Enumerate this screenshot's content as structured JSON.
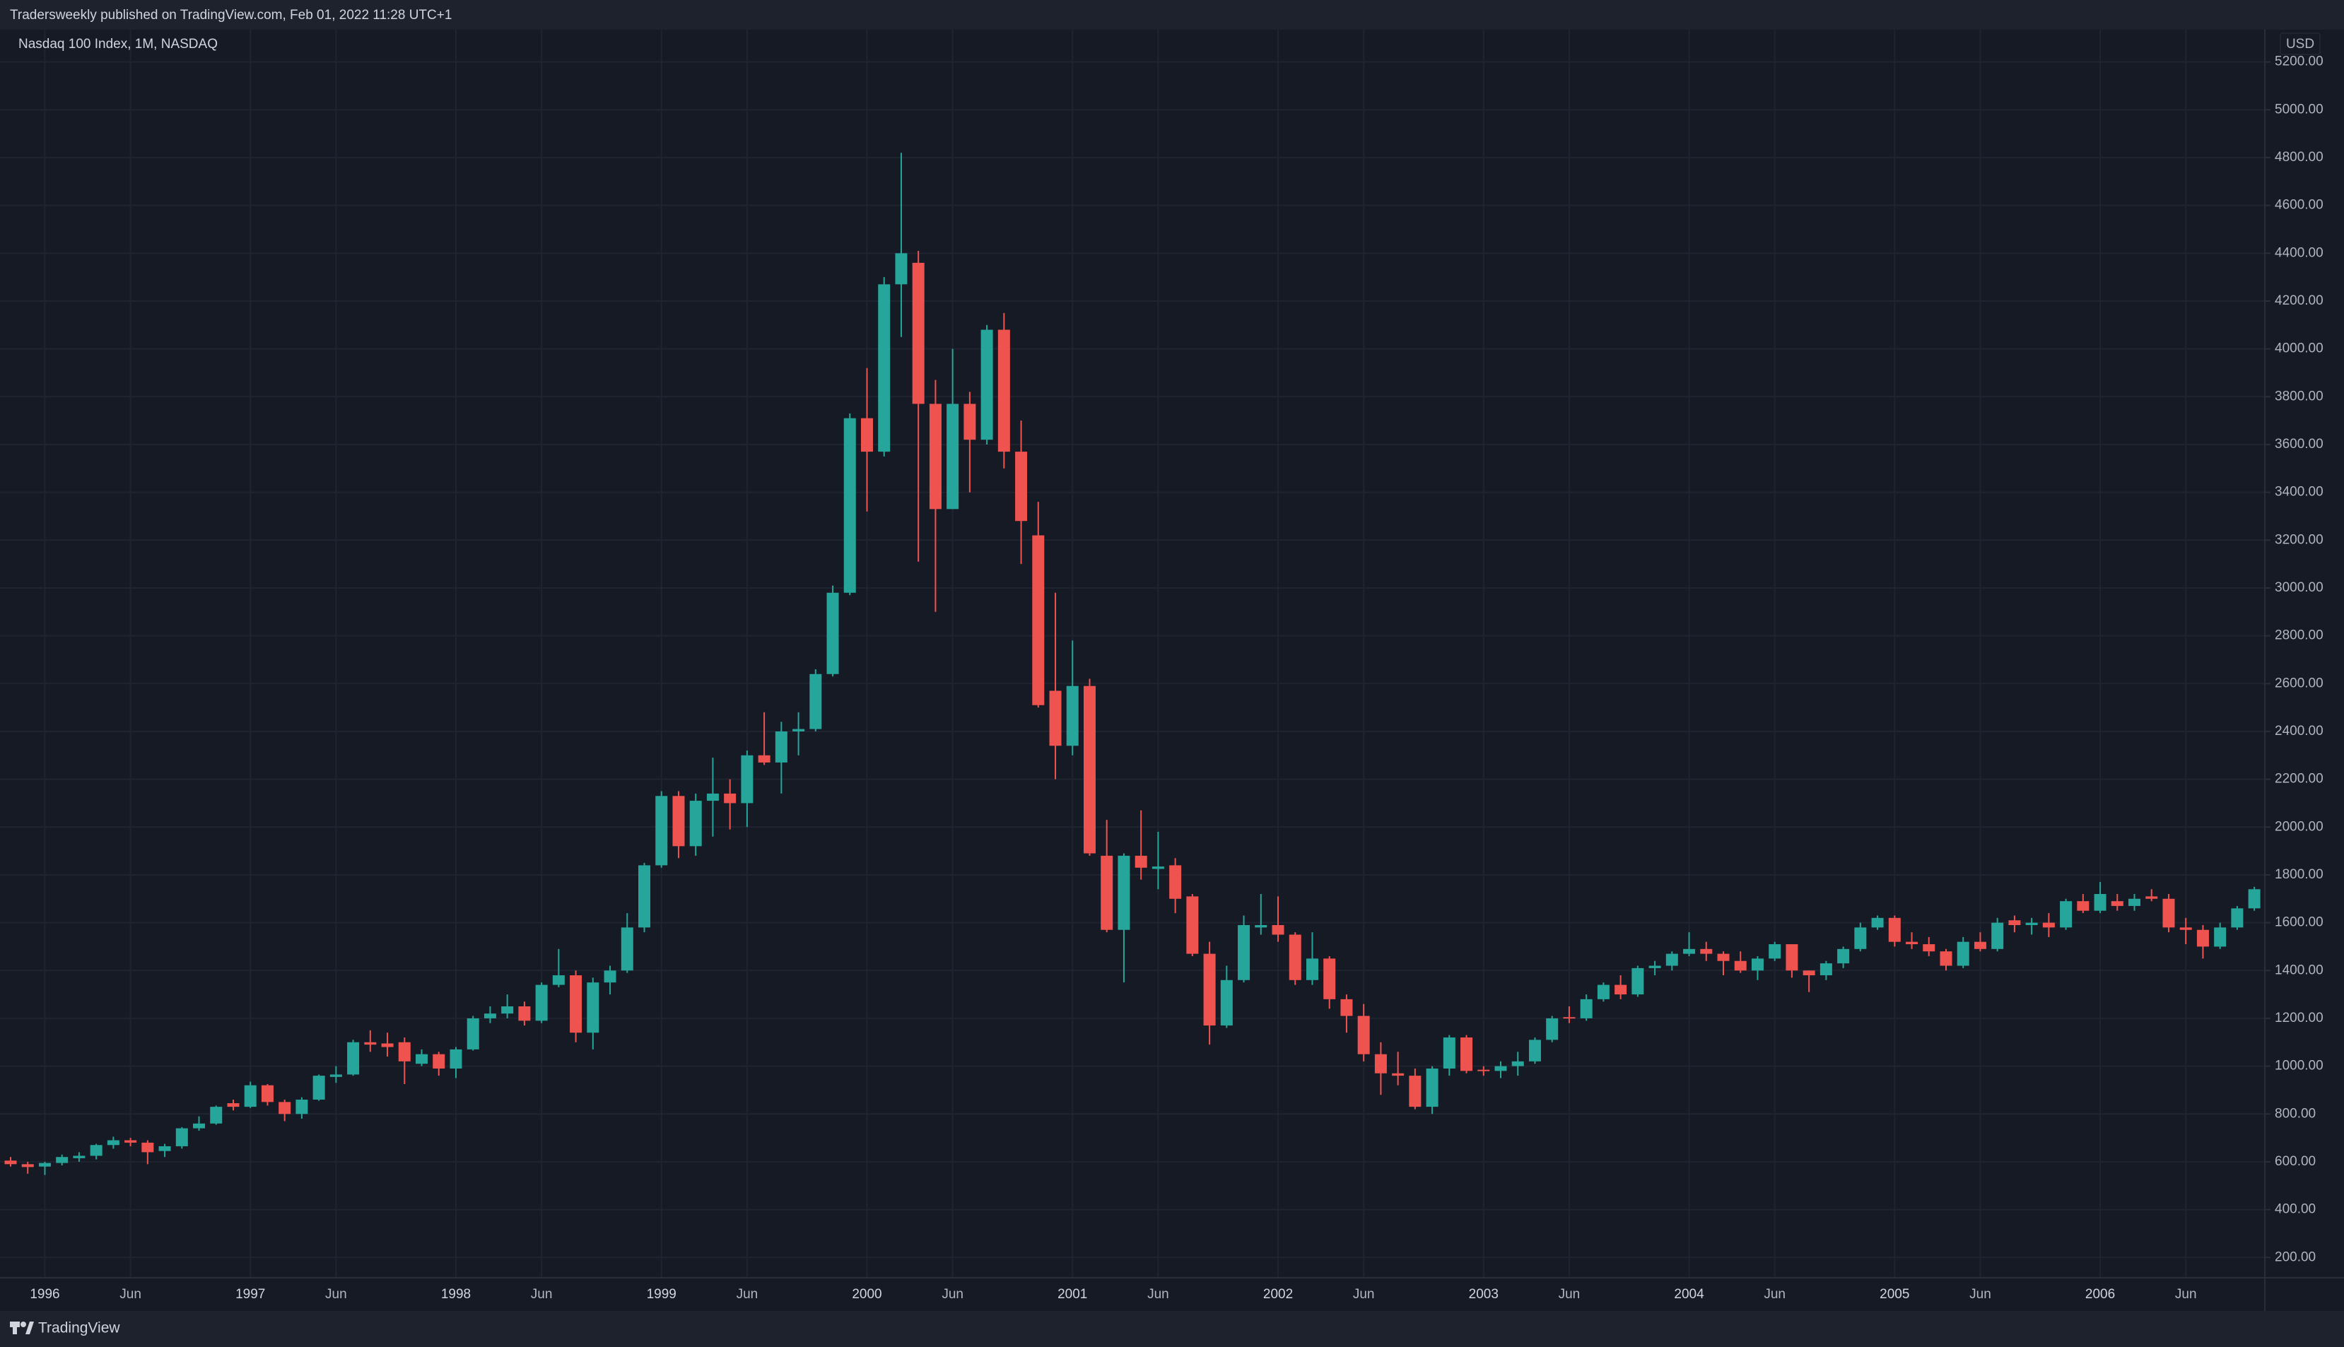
{
  "header": {
    "text": "Tradersweekly published on TradingView.com, Feb 01, 2022 11:28 UTC+1"
  },
  "footer": {
    "logo": "TradingView"
  },
  "chart_data": {
    "type": "candlestick",
    "title": "Nasdaq 100 Index, 1M, NASDAQ",
    "y_unit": "USD",
    "up_color": "#26a69a",
    "down_color": "#ef5350",
    "grid": true,
    "ylim": [
      115,
      5335
    ],
    "yticks": [
      {
        "value": 200,
        "label": "200.00"
      },
      {
        "value": 400,
        "label": "400.00"
      },
      {
        "value": 600,
        "label": "600.00"
      },
      {
        "value": 800,
        "label": "800.00"
      },
      {
        "value": 1000,
        "label": "1000.00"
      },
      {
        "value": 1200,
        "label": "1200.00"
      },
      {
        "value": 1400,
        "label": "1400.00"
      },
      {
        "value": 1600,
        "label": "1600.00"
      },
      {
        "value": 1800,
        "label": "1800.00"
      },
      {
        "value": 2000,
        "label": "2000.00"
      },
      {
        "value": 2200,
        "label": "2200.00"
      },
      {
        "value": 2400,
        "label": "2400.00"
      },
      {
        "value": 2600,
        "label": "2600.00"
      },
      {
        "value": 2800,
        "label": "2800.00"
      },
      {
        "value": 3000,
        "label": "3000.00"
      },
      {
        "value": 3200,
        "label": "3200.00"
      },
      {
        "value": 3400,
        "label": "3400.00"
      },
      {
        "value": 3600,
        "label": "3600.00"
      },
      {
        "value": 3800,
        "label": "3800.00"
      },
      {
        "value": 4000,
        "label": "4000.00"
      },
      {
        "value": 4200,
        "label": "4200.00"
      },
      {
        "value": 4400,
        "label": "4400.00"
      },
      {
        "value": 4600,
        "label": "4600.00"
      },
      {
        "value": 4800,
        "label": "4800.00"
      },
      {
        "value": 5000,
        "label": "5000.00"
      },
      {
        "value": 5200,
        "label": "5200.00"
      }
    ],
    "xticks": [
      {
        "value": "1996-01",
        "label": "1996"
      },
      {
        "value": "1996-06",
        "label": "Jun"
      },
      {
        "value": "1997-01",
        "label": "1997"
      },
      {
        "value": "1997-06",
        "label": "Jun"
      },
      {
        "value": "1998-01",
        "label": "1998"
      },
      {
        "value": "1998-06",
        "label": "Jun"
      },
      {
        "value": "1999-01",
        "label": "1999"
      },
      {
        "value": "1999-06",
        "label": "Jun"
      },
      {
        "value": "2000-01",
        "label": "2000"
      },
      {
        "value": "2000-06",
        "label": "Jun"
      },
      {
        "value": "2001-01",
        "label": "2001"
      },
      {
        "value": "2001-06",
        "label": "Jun"
      },
      {
        "value": "2002-01",
        "label": "2002"
      },
      {
        "value": "2002-06",
        "label": "Jun"
      },
      {
        "value": "2003-01",
        "label": "2003"
      },
      {
        "value": "2003-06",
        "label": "Jun"
      },
      {
        "value": "2004-01",
        "label": "2004"
      },
      {
        "value": "2004-06",
        "label": "Jun"
      },
      {
        "value": "2005-01",
        "label": "2005"
      },
      {
        "value": "2005-06",
        "label": "Jun"
      },
      {
        "value": "2006-01",
        "label": "2006"
      },
      {
        "value": "2006-06",
        "label": "Jun"
      }
    ],
    "x": [
      "1995-11",
      "1995-12",
      "1996-01",
      "1996-02",
      "1996-03",
      "1996-04",
      "1996-05",
      "1996-06",
      "1996-07",
      "1996-08",
      "1996-09",
      "1996-10",
      "1996-11",
      "1996-12",
      "1997-01",
      "1997-02",
      "1997-03",
      "1997-04",
      "1997-05",
      "1997-06",
      "1997-07",
      "1997-08",
      "1997-09",
      "1997-10",
      "1997-11",
      "1997-12",
      "1998-01",
      "1998-02",
      "1998-03",
      "1998-04",
      "1998-05",
      "1998-06",
      "1998-07",
      "1998-08",
      "1998-09",
      "1998-10",
      "1998-11",
      "1998-12",
      "1999-01",
      "1999-02",
      "1999-03",
      "1999-04",
      "1999-05",
      "1999-06",
      "1999-07",
      "1999-08",
      "1999-09",
      "1999-10",
      "1999-11",
      "1999-12",
      "2000-01",
      "2000-02",
      "2000-03",
      "2000-04",
      "2000-05",
      "2000-06",
      "2000-07",
      "2000-08",
      "2000-09",
      "2000-10",
      "2000-11",
      "2000-12",
      "2001-01",
      "2001-02",
      "2001-03",
      "2001-04",
      "2001-05",
      "2001-06",
      "2001-07",
      "2001-08",
      "2001-09",
      "2001-10",
      "2001-11",
      "2001-12",
      "2002-01",
      "2002-02",
      "2002-03",
      "2002-04",
      "2002-05",
      "2002-06",
      "2002-07",
      "2002-08",
      "2002-09",
      "2002-10",
      "2002-11",
      "2002-12",
      "2003-01",
      "2003-02",
      "2003-03",
      "2003-04",
      "2003-05",
      "2003-06",
      "2003-07",
      "2003-08",
      "2003-09",
      "2003-10",
      "2003-11",
      "2003-12",
      "2004-01",
      "2004-02",
      "2004-03",
      "2004-04",
      "2004-05",
      "2004-06",
      "2004-07",
      "2004-08",
      "2004-09",
      "2004-10",
      "2004-11",
      "2004-12",
      "2005-01",
      "2005-02",
      "2005-03",
      "2005-04",
      "2005-05",
      "2005-06",
      "2005-07",
      "2005-08",
      "2005-09",
      "2005-10",
      "2005-11",
      "2005-12",
      "2006-01",
      "2006-02",
      "2006-03",
      "2006-04",
      "2006-05",
      "2006-06",
      "2006-07",
      "2006-08",
      "2006-09",
      "2006-10"
    ],
    "open": [
      605,
      590,
      580,
      595,
      615,
      625,
      670,
      690,
      680,
      645,
      665,
      740,
      760,
      845,
      830,
      920,
      850,
      800,
      860,
      955,
      965,
      1100,
      1095,
      1100,
      1010,
      1050,
      990,
      1070,
      1200,
      1220,
      1250,
      1190,
      1340,
      1380,
      1140,
      1350,
      1400,
      1580,
      1840,
      2130,
      1920,
      2110,
      2140,
      2100,
      2300,
      2270,
      2400,
      2410,
      2640,
      2980,
      3710,
      3570,
      4270,
      4360,
      3770,
      3330,
      3770,
      3620,
      4080,
      3570,
      3220,
      2570,
      2340,
      2590,
      1880,
      1570,
      1880,
      1825,
      1840,
      1710,
      1470,
      1170,
      1360,
      1580,
      1590,
      1550,
      1360,
      1450,
      1280,
      1210,
      1050,
      970,
      960,
      830,
      990,
      1120,
      985,
      980,
      1000,
      1020,
      1110,
      1205,
      1200,
      1280,
      1340,
      1300,
      1410,
      1420,
      1470,
      1490,
      1470,
      1440,
      1400,
      1450,
      1510,
      1400,
      1380,
      1430,
      1490,
      1580,
      1620,
      1520,
      1510,
      1480,
      1420,
      1520,
      1490,
      1610,
      1590,
      1600,
      1580,
      1690,
      1650,
      1690,
      1670,
      1710,
      1700,
      1580,
      1570,
      1500,
      1580,
      1660
    ],
    "high": [
      620,
      600,
      600,
      630,
      640,
      675,
      705,
      700,
      690,
      675,
      745,
      790,
      835,
      860,
      935,
      925,
      860,
      870,
      965,
      1000,
      1110,
      1150,
      1140,
      1120,
      1070,
      1060,
      1080,
      1210,
      1250,
      1300,
      1270,
      1350,
      1490,
      1400,
      1370,
      1420,
      1640,
      1850,
      2150,
      2150,
      2140,
      2290,
      2200,
      2320,
      2480,
      2440,
      2480,
      2660,
      3010,
      3730,
      3920,
      4300,
      4820,
      4410,
      3870,
      4000,
      3820,
      4100,
      4150,
      3700,
      3360,
      2980,
      2780,
      2620,
      2030,
      1890,
      2070,
      1980,
      1870,
      1720,
      1520,
      1420,
      1630,
      1720,
      1710,
      1560,
      1560,
      1460,
      1300,
      1260,
      1100,
      1060,
      990,
      1000,
      1130,
      1130,
      1000,
      1020,
      1060,
      1120,
      1210,
      1250,
      1300,
      1350,
      1380,
      1420,
      1440,
      1480,
      1560,
      1520,
      1480,
      1480,
      1460,
      1520,
      1510,
      1400,
      1440,
      1500,
      1600,
      1630,
      1630,
      1560,
      1540,
      1490,
      1540,
      1560,
      1620,
      1630,
      1620,
      1640,
      1700,
      1720,
      1770,
      1720,
      1720,
      1740,
      1720,
      1620,
      1590,
      1600,
      1670,
      1750
    ],
    "low": [
      580,
      550,
      545,
      585,
      600,
      610,
      655,
      665,
      590,
      620,
      655,
      730,
      755,
      815,
      825,
      835,
      770,
      780,
      855,
      930,
      960,
      1060,
      1040,
      925,
      1000,
      960,
      950,
      1065,
      1180,
      1200,
      1170,
      1180,
      1330,
      1100,
      1070,
      1300,
      1390,
      1560,
      1830,
      1870,
      1880,
      1960,
      1990,
      2000,
      2260,
      2140,
      2300,
      2400,
      2630,
      2970,
      3320,
      3550,
      4050,
      3110,
      2900,
      3330,
      3400,
      3600,
      3500,
      3100,
      2500,
      2200,
      2300,
      1880,
      1560,
      1350,
      1780,
      1740,
      1640,
      1460,
      1090,
      1160,
      1350,
      1550,
      1520,
      1340,
      1340,
      1240,
      1140,
      1020,
      880,
      920,
      820,
      800,
      960,
      970,
      960,
      950,
      960,
      1010,
      1100,
      1180,
      1190,
      1270,
      1280,
      1290,
      1380,
      1400,
      1460,
      1440,
      1380,
      1390,
      1360,
      1440,
      1370,
      1310,
      1360,
      1410,
      1480,
      1570,
      1500,
      1490,
      1460,
      1400,
      1410,
      1480,
      1480,
      1560,
      1550,
      1540,
      1570,
      1640,
      1640,
      1650,
      1650,
      1690,
      1560,
      1510,
      1450,
      1490,
      1570,
      1650
    ],
    "close": [
      590,
      578,
      595,
      620,
      625,
      670,
      690,
      680,
      640,
      665,
      740,
      760,
      830,
      830,
      920,
      850,
      800,
      860,
      960,
      965,
      1100,
      1090,
      1080,
      1020,
      1050,
      990,
      1070,
      1200,
      1220,
      1250,
      1190,
      1340,
      1380,
      1140,
      1350,
      1400,
      1580,
      1840,
      2130,
      1920,
      2110,
      2140,
      2100,
      2300,
      2270,
      2400,
      2410,
      2640,
      2980,
      3710,
      3570,
      4270,
      4400,
      3770,
      3330,
      3770,
      3620,
      4080,
      3570,
      3280,
      2510,
      2340,
      2590,
      1890,
      1570,
      1880,
      1830,
      1835,
      1700,
      1470,
      1170,
      1360,
      1590,
      1590,
      1550,
      1360,
      1450,
      1280,
      1210,
      1050,
      970,
      960,
      830,
      990,
      1120,
      980,
      980,
      1000,
      1020,
      1110,
      1200,
      1200,
      1280,
      1340,
      1300,
      1410,
      1420,
      1470,
      1490,
      1470,
      1440,
      1400,
      1450,
      1510,
      1400,
      1380,
      1430,
      1490,
      1580,
      1620,
      1520,
      1510,
      1480,
      1420,
      1520,
      1490,
      1600,
      1590,
      1600,
      1580,
      1690,
      1650,
      1720,
      1670,
      1700,
      1700,
      1580,
      1570,
      1500,
      1580,
      1660,
      1740
    ]
  }
}
